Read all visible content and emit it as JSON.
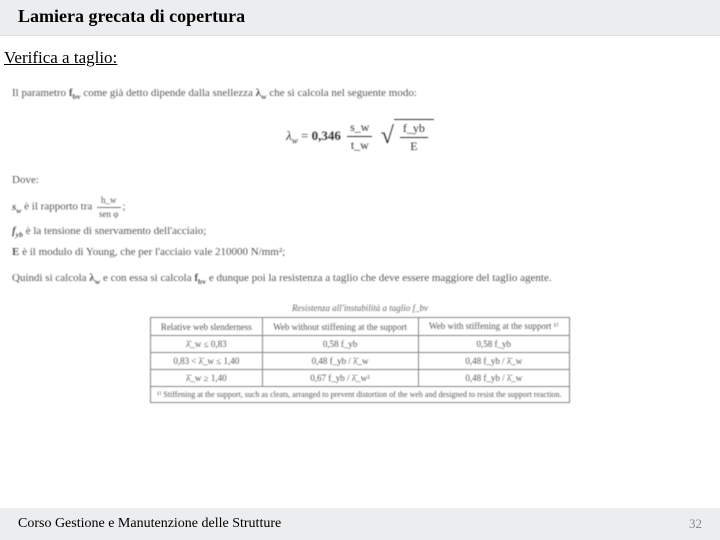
{
  "header": {
    "title": "Lamiera grecata di copertura"
  },
  "section": {
    "subtitle": "Verifica a taglio:"
  },
  "intro": "Il parametro f_bv come già detto dipende dalla snellezza λ_w che si calcola nel seguente modo:",
  "formula": {
    "lhs": "λ_w =",
    "coef": "0,346",
    "frac_num": "s_w",
    "frac_den": "t_w",
    "sqrt_num": "f_yb",
    "sqrt_den": "E"
  },
  "dove": "Dove:",
  "defs": {
    "sw_pre": "s_w è il rapporto tra ",
    "sw_frac_num": "h_w",
    "sw_frac_den": "sen φ",
    "sw_post": ";",
    "fyb": "f_yb è la tensione di snervamento dell'acciaio;",
    "E": "E è il modulo di Young, che per l'acciaio vale 210000 N/mm²;"
  },
  "conclusion": "Quindi si calcola λ_w e con essa si calcola f_bv e dunque poi la resistenza a taglio che deve essere maggiore del taglio agente.",
  "table": {
    "caption": "Resistenza all'instabilità a taglio f_bv",
    "headers": [
      "Relative web slenderness",
      "Web without stiffening at the support",
      "Web with stiffening at the support ¹⁾"
    ],
    "rows": [
      [
        "λ̄_w ≤ 0,83",
        "0,58 f_yb",
        "0,58 f_yb"
      ],
      [
        "0,83 < λ̄_w ≤ 1,40",
        "0,48 f_yb / λ̄_w",
        "0,48 f_yb / λ̄_w"
      ],
      [
        "λ̄_w ≥ 1,40",
        "0,67 f_yb / λ̄_w²",
        "0,48 f_yb / λ̄_w"
      ]
    ],
    "footnote": "¹⁾ Stiffening at the support, such as cleats, arranged to prevent distortion of the web and designed to resist the support reaction."
  },
  "footer": {
    "course": "Corso Gestione e Manutenzione delle Strutture",
    "page": "32"
  }
}
